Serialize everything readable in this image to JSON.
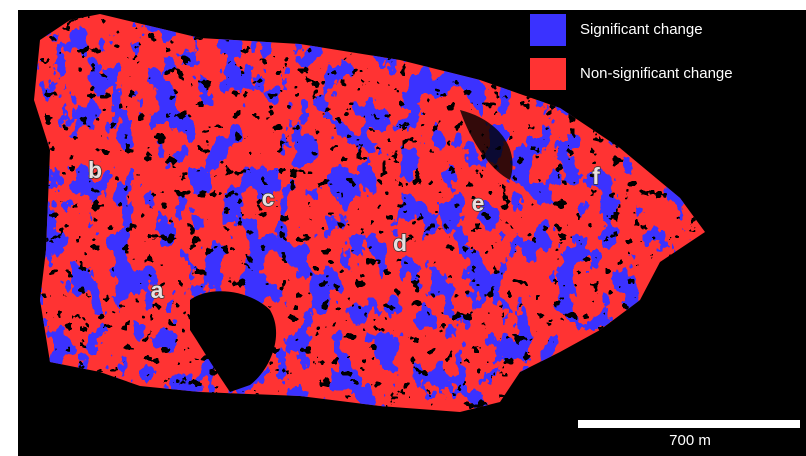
{
  "legend": {
    "items": [
      {
        "label": "Significant change",
        "color": "#3a32ff"
      },
      {
        "label": "Non-significant change",
        "color": "#ff3333"
      }
    ]
  },
  "labels": [
    "a",
    "b",
    "c",
    "d",
    "e",
    "f"
  ],
  "scale_bar": {
    "label": "700 m"
  }
}
